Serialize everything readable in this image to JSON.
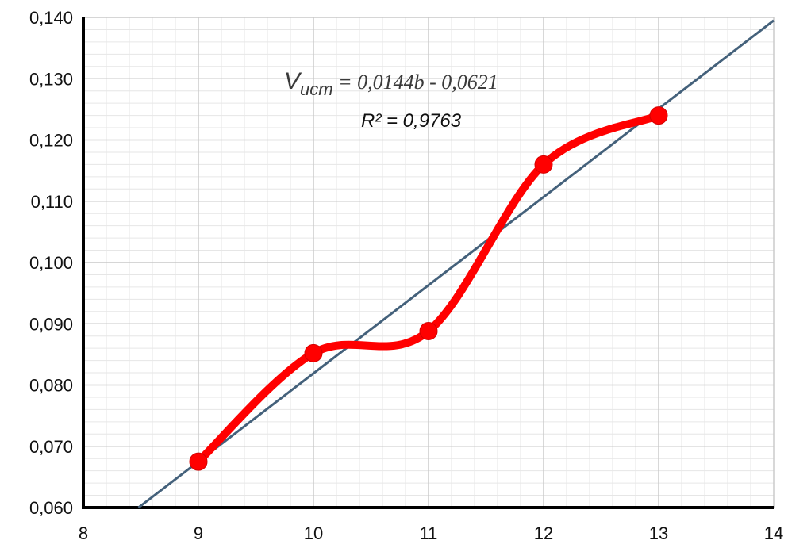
{
  "chart_data": {
    "type": "line",
    "title": "",
    "xlabel": "",
    "ylabel": "",
    "xlim": [
      8,
      14
    ],
    "ylim": [
      0.06,
      0.14
    ],
    "x_ticks": [
      "8",
      "9",
      "10",
      "11",
      "12",
      "13",
      "14"
    ],
    "y_ticks": [
      "0,060",
      "0,070",
      "0,080",
      "0,090",
      "0,100",
      "0,110",
      "0,120",
      "0,130",
      "0,140"
    ],
    "grid": true,
    "series": [
      {
        "type": "smooth-line-markers",
        "color": "#ff0000",
        "x": [
          9,
          10,
          11,
          12,
          13
        ],
        "y": [
          0.0675,
          0.0852,
          0.0888,
          0.116,
          0.124
        ]
      },
      {
        "type": "linear-trendline",
        "color": "#44617b",
        "slope": 0.0144,
        "intercept": -0.0621
      }
    ],
    "annotations": {
      "equation_v": "V",
      "equation_sub": "исm",
      "equation_rest": " = 0,0144b - 0,0621",
      "r_squared": "R² = 0,9763"
    }
  }
}
